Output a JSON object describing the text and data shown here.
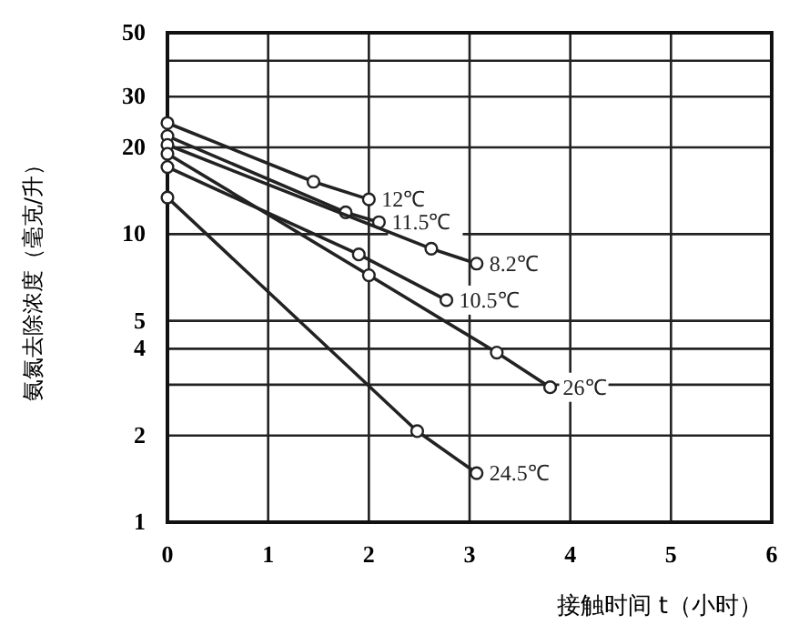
{
  "chart_data": {
    "type": "line",
    "xlabel": "接触时间 t（小时）",
    "ylabel": "氨氮去除浓度（毫克/升）",
    "log": "y",
    "grid": true,
    "marker": "circle",
    "line_style": "solid",
    "xlim": [
      0,
      6
    ],
    "xticks": [
      0,
      1,
      2,
      3,
      4,
      5,
      6
    ],
    "ylim": [
      1,
      50
    ],
    "yticks": [
      1,
      2,
      {
        "value": 3,
        "label": null
      },
      4,
      5,
      10,
      20,
      30,
      {
        "value": 40,
        "label": null
      },
      50
    ],
    "series": [
      {
        "name": "12℃",
        "color": "#222222",
        "x": [
          0,
          1.45,
          2.0
        ],
        "values": [
          24.3,
          15.2,
          13.2
        ]
      },
      {
        "name": "11.5℃",
        "color": "#222222",
        "x": [
          0,
          1.77,
          2.1
        ],
        "values": [
          21.9,
          11.9,
          11.0
        ]
      },
      {
        "name": "8.2℃",
        "color": "#222222",
        "x": [
          0,
          2.62,
          3.07
        ],
        "values": [
          20.4,
          8.9,
          7.9
        ]
      },
      {
        "name": "10.5℃",
        "color": "#222222",
        "x": [
          0,
          1.9,
          2.77
        ],
        "values": [
          17.1,
          8.5,
          5.9
        ]
      },
      {
        "name": "26℃",
        "color": "#222222",
        "x": [
          0,
          2.0,
          3.27,
          3.8
        ],
        "values": [
          19.0,
          7.2,
          3.88,
          2.94
        ]
      },
      {
        "name": "24.5℃",
        "color": "#222222",
        "x": [
          0,
          2.48,
          3.07
        ],
        "values": [
          13.4,
          2.07,
          1.48
        ]
      }
    ]
  }
}
